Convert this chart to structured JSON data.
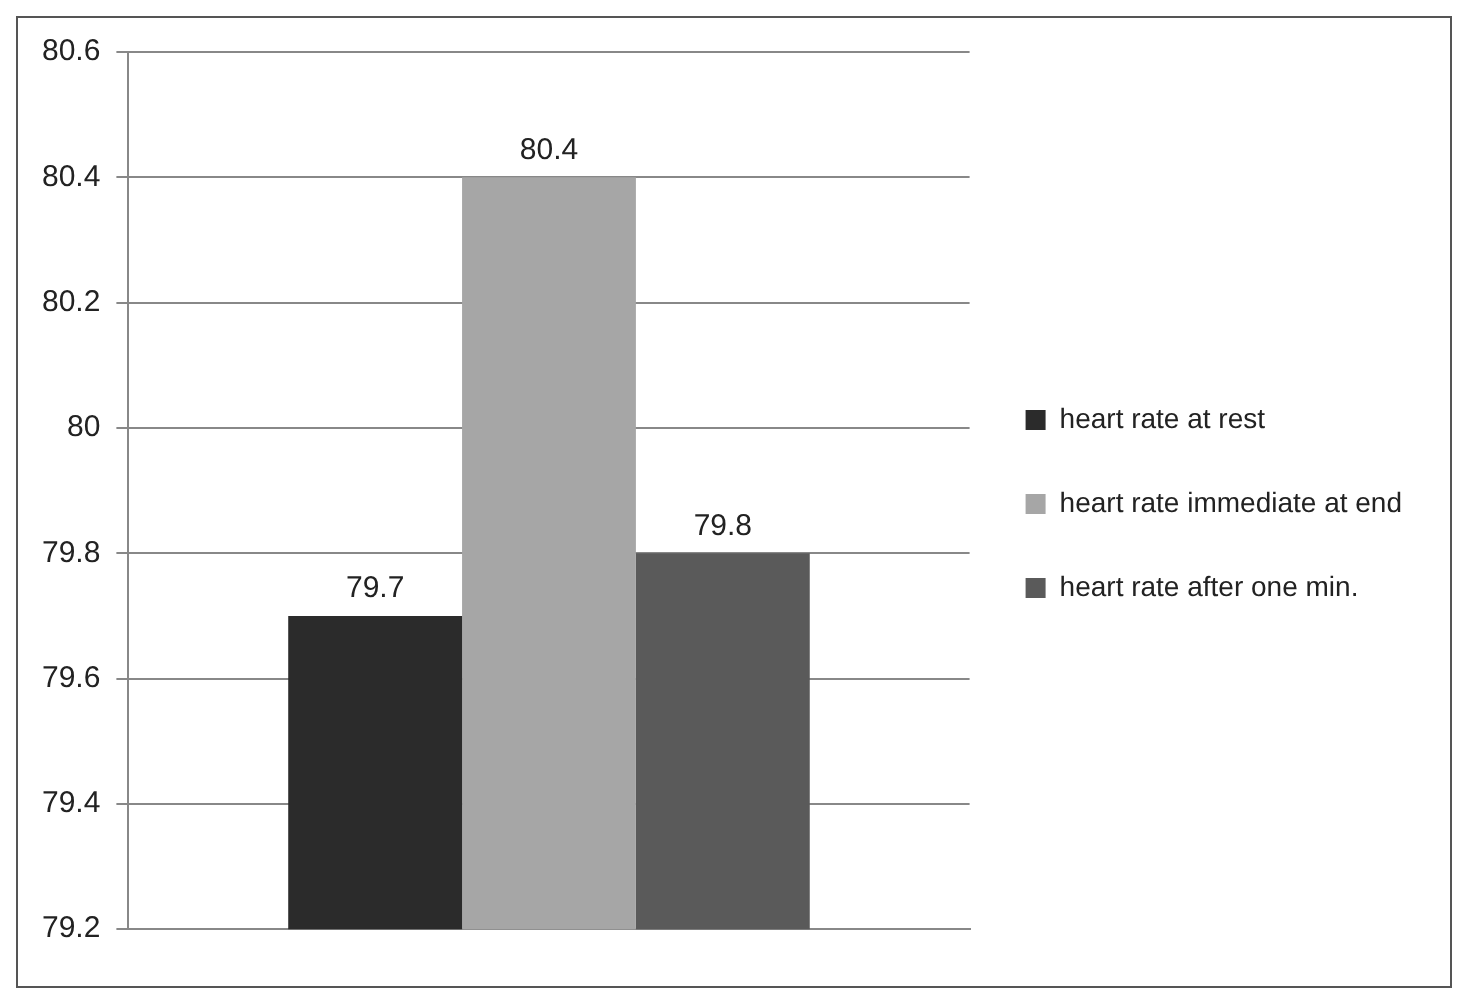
{
  "chart_data": {
    "type": "bar",
    "categories": [
      null
    ],
    "series": [
      {
        "name": "heart rate at rest",
        "color": "#2b2b2b",
        "values": [
          79.7
        ]
      },
      {
        "name": "heart rate immediate at end",
        "color": "#a6a6a6",
        "values": [
          80.4
        ]
      },
      {
        "name": "heart rate after one min.",
        "color": "#5a5a5a",
        "values": [
          79.8
        ]
      }
    ],
    "ylim": [
      79.2,
      80.6
    ],
    "yticks": [
      79.2,
      79.4,
      79.6,
      79.8,
      80,
      80.2,
      80.4,
      80.6
    ],
    "grid": "y",
    "legend": "right",
    "data_labels": true
  }
}
